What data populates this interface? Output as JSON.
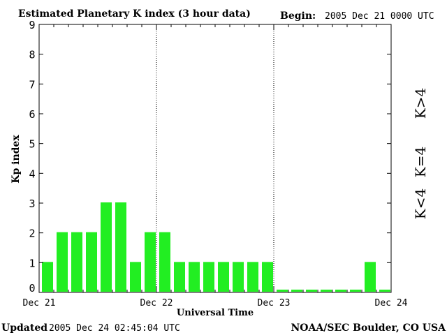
{
  "header": {
    "title": "Estimated Planetary K index (3 hour data)",
    "begin_label": "Begin:",
    "begin_value": "2005 Dec 21 0000 UTC"
  },
  "footer": {
    "updated_label": "Updated",
    "updated_value": "2005 Dec 24 02:45:04 UTC",
    "source": "NOAA/SEC Boulder, CO USA"
  },
  "legend": [
    {
      "label": "K>4",
      "color": "#ff2200"
    },
    {
      "label": "K=4",
      "color": "#ffd700"
    },
    {
      "label": "K<4",
      "color": "#22ee22"
    }
  ],
  "chart_data": {
    "type": "bar",
    "title": "Estimated Planetary K index (3 hour data)",
    "xlabel": "Universal Time",
    "ylabel": "Kp index",
    "ylim": [
      0,
      9
    ],
    "yticks": [
      0,
      1,
      2,
      3,
      4,
      5,
      6,
      7,
      8,
      9
    ],
    "xticks": [
      "Dec 21",
      "Dec 22",
      "Dec 23",
      "Dec 24"
    ],
    "bar_color": "#22ee22",
    "values": [
      1,
      2,
      2,
      2,
      3,
      3,
      1,
      2,
      2,
      1,
      1,
      1,
      1,
      1,
      1,
      1,
      0,
      0,
      0,
      0,
      0,
      0,
      1,
      0,
      0
    ]
  }
}
